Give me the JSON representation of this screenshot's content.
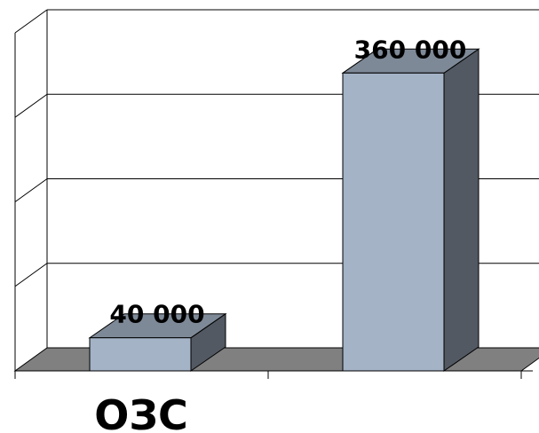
{
  "chart_data": {
    "type": "bar",
    "categories": [
      "ОЗС",
      ""
    ],
    "values": [
      40000,
      360000
    ],
    "data_labels": [
      "40 000",
      "360 000"
    ],
    "ylim": [
      0,
      400000
    ],
    "grid": true,
    "style": "3d-column",
    "colors": {
      "bar_front": "#a4b3c6",
      "bar_top": "#7e8997",
      "bar_side": "#525962",
      "floor": "#808080",
      "grid_line": "#000000"
    }
  }
}
